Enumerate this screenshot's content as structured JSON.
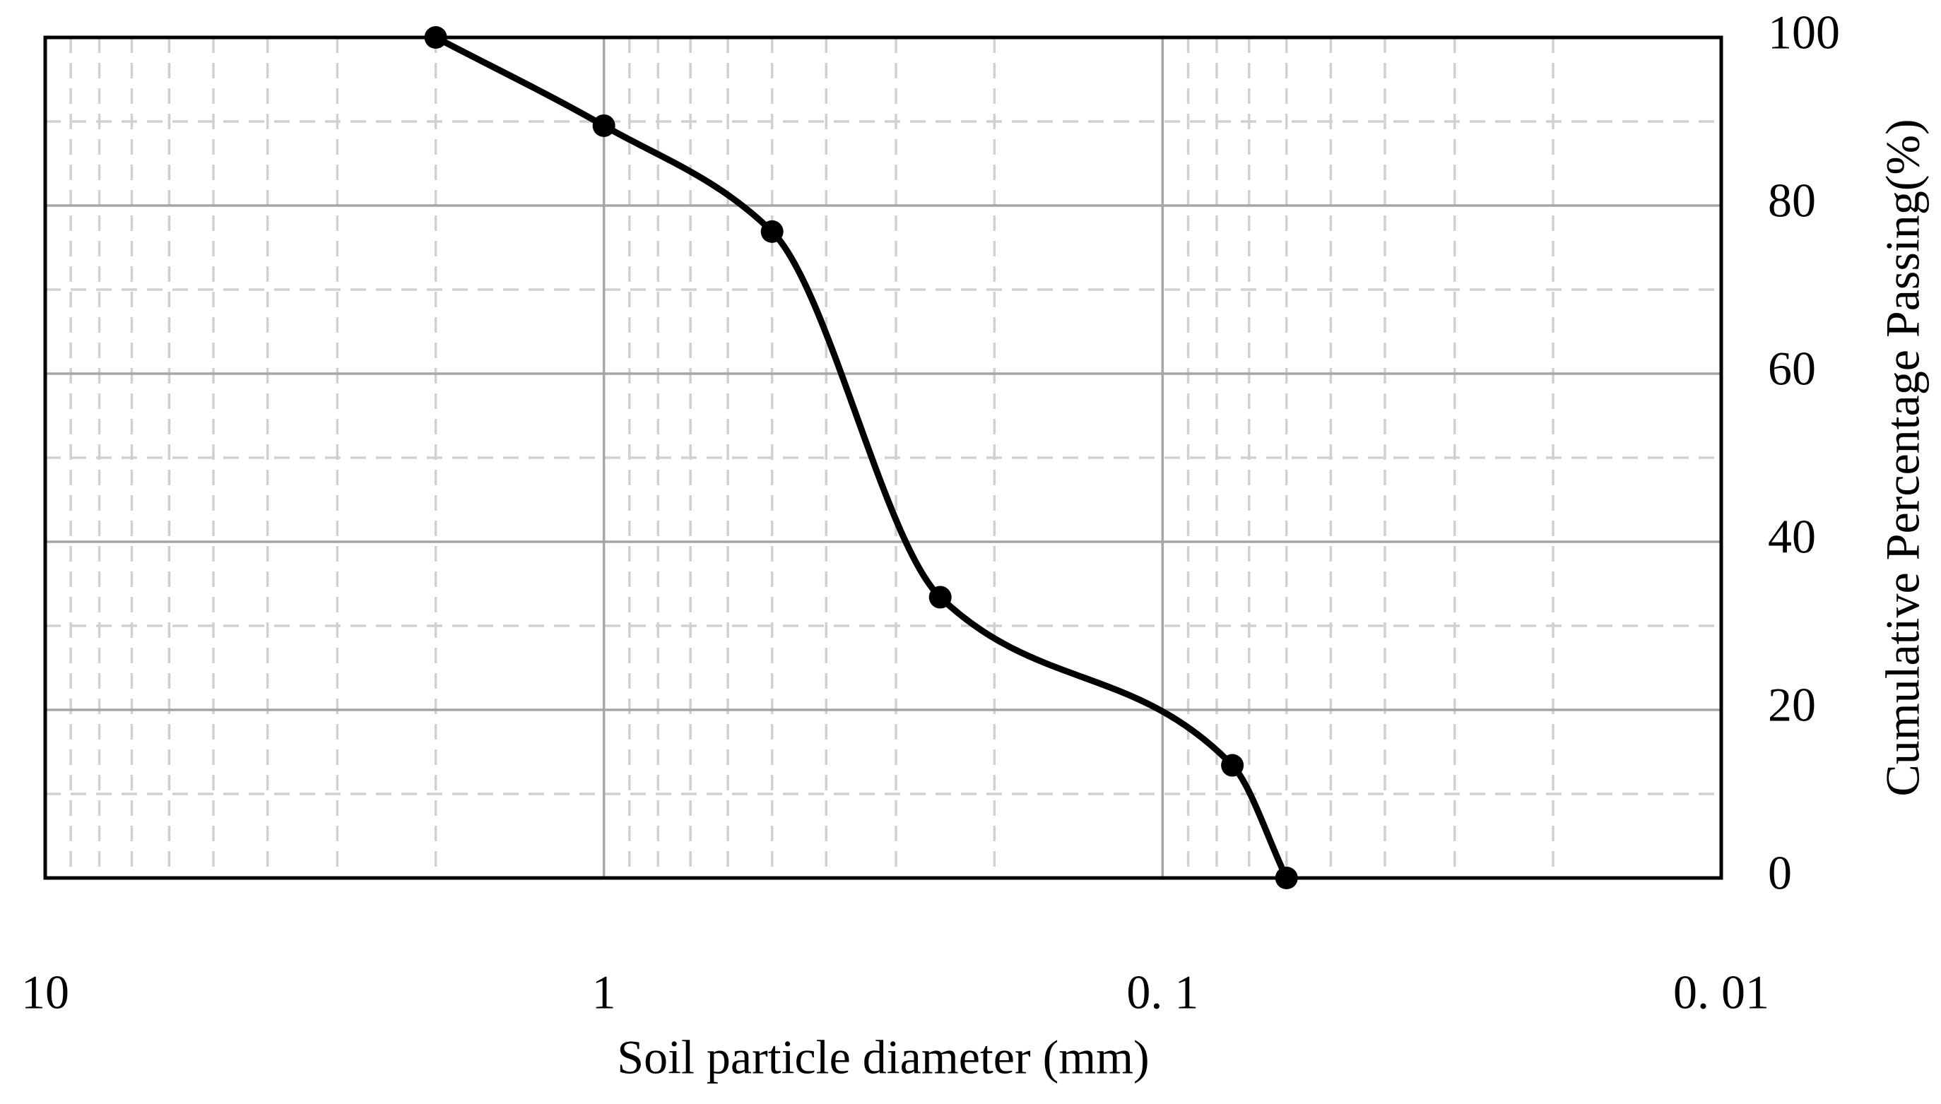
{
  "chart_data": {
    "type": "line",
    "x_label": "Soil particle diameter (mm)",
    "y_label": "Cumulative Percentage Passing(%)",
    "x": [
      2.0,
      1.0,
      0.5,
      0.25,
      0.075,
      0.06
    ],
    "series": [
      {
        "color": "#000000",
        "values": [
          100,
          89.5,
          76.9,
          33.4,
          13.4,
          0
        ]
      }
    ],
    "xlim": [
      10,
      0.01
    ],
    "xscale": "log",
    "xticks": [
      10,
      1,
      {
        "value": 0.1,
        "label": "0. 1"
      },
      {
        "value": 0.01,
        "label": "0. 01"
      }
    ],
    "ylim": [
      0,
      100
    ],
    "yticks": [
      0,
      20,
      40,
      60,
      80,
      100
    ],
    "grid": true
  }
}
